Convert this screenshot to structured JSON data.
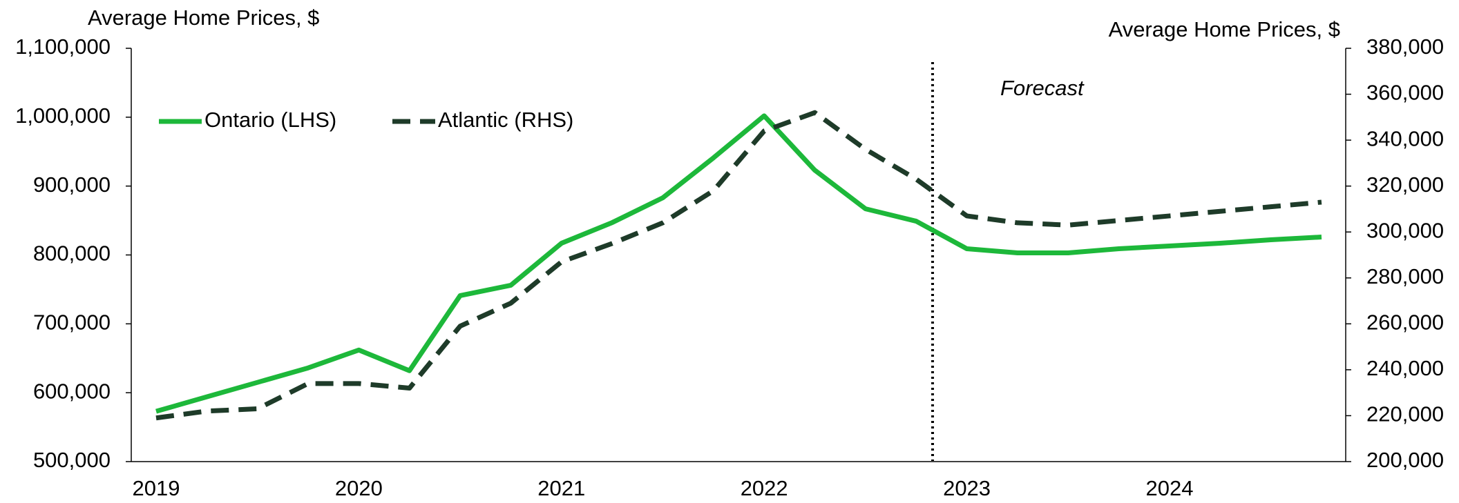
{
  "chart_data": {
    "type": "line",
    "y_label": "Average Home Prices, $",
    "y2_label": "Average Home Prices, $",
    "annotation": "Forecast",
    "categories": [
      "2019",
      null,
      null,
      null,
      "2020",
      null,
      null,
      null,
      "2021",
      null,
      null,
      null,
      "2022",
      null,
      null,
      null,
      "2023",
      null,
      null,
      null,
      "2024",
      null,
      null,
      null
    ],
    "series": [
      {
        "name": "Ontario (LHS)",
        "color": "#1db83a",
        "dash": false,
        "values": [
          573000,
          594000,
          615000,
          636000,
          662000,
          632000,
          741000,
          756000,
          817000,
          847000,
          883000,
          941000,
          1002000,
          923000,
          867000,
          849000,
          809000,
          803000,
          803000,
          809000,
          813000,
          817000,
          822000,
          826000
        ]
      },
      {
        "name": "Atlantic (RHS)",
        "color": "#1e3b29",
        "dash": true,
        "axis": "y2",
        "values": [
          219000,
          222000,
          223000,
          234000,
          234000,
          232000,
          259000,
          269000,
          287000,
          295000,
          304000,
          318000,
          344000,
          352000,
          336000,
          323000,
          307000,
          304000,
          303000,
          305000,
          307000,
          309000,
          311000,
          313000
        ]
      }
    ],
    "ylim": [
      500000,
      1100000
    ],
    "yticks": [
      {
        "value": 500000,
        "label": "500,000"
      },
      {
        "value": 600000,
        "label": "600,000"
      },
      {
        "value": 700000,
        "label": "700,000"
      },
      {
        "value": 800000,
        "label": "800,000"
      },
      {
        "value": 900000,
        "label": "900,000"
      },
      {
        "value": 1000000,
        "label": "1,000,000"
      },
      {
        "value": 1100000,
        "label": "1,100,000"
      }
    ],
    "y2lim": [
      200000,
      380000
    ],
    "y2ticks": [
      {
        "value": 200000,
        "label": "200,000"
      },
      {
        "value": 220000,
        "label": "220,000"
      },
      {
        "value": 240000,
        "label": "240,000"
      },
      {
        "value": 260000,
        "label": "260,000"
      },
      {
        "value": 280000,
        "label": "280,000"
      },
      {
        "value": 300000,
        "label": "300,000"
      },
      {
        "value": 320000,
        "label": "320,000"
      },
      {
        "value": 340000,
        "label": "340,000"
      },
      {
        "value": 360000,
        "label": "360,000"
      },
      {
        "value": 380000,
        "label": "380,000"
      }
    ],
    "grid": false,
    "legend": "top-left"
  }
}
